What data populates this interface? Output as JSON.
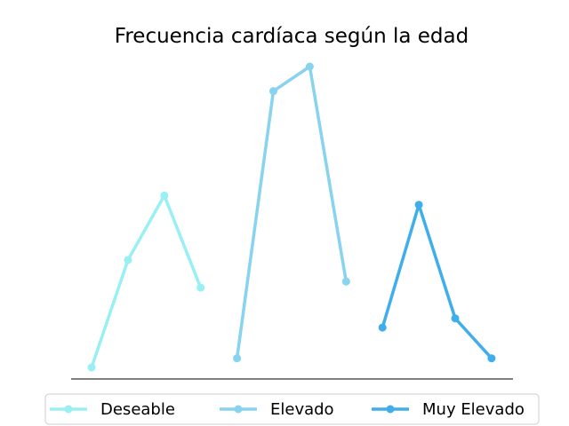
{
  "chart_data": {
    "type": "line",
    "title": "Frecuencia cardíaca según la edad",
    "xlabel": "",
    "ylabel": "",
    "axes_visible": false,
    "grid": false,
    "legend_position": "bottom",
    "ylim": [
      0,
      100
    ],
    "series": [
      {
        "name": "Deseable",
        "color": "#98f0f5",
        "x": [
          1,
          2,
          3,
          4
        ],
        "values": [
          2,
          37,
          58,
          28
        ]
      },
      {
        "name": "Elevado",
        "color": "#87d3f0",
        "x": [
          5,
          6,
          7,
          8
        ],
        "values": [
          5,
          92,
          100,
          30
        ]
      },
      {
        "name": "Muy Elevado",
        "color": "#3faeea",
        "x": [
          9,
          10,
          11,
          12
        ],
        "values": [
          15,
          55,
          18,
          5
        ]
      }
    ]
  }
}
